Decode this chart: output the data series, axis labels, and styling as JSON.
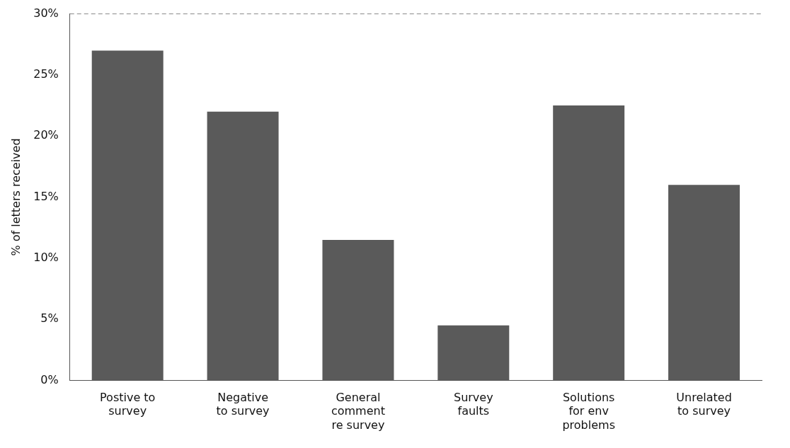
{
  "chart_data": {
    "type": "bar",
    "ylabel": "% of letters received",
    "categories": [
      "Postive to\nsurvey",
      "Negative\nto survey",
      "General\ncomment\nre survey",
      "Survey\nfaults",
      "Solutions\nfor env\nproblems",
      "Unrelated\nto survey"
    ],
    "values": [
      27,
      22,
      11.5,
      4.5,
      22.5,
      16
    ],
    "color": "#5a5a5a",
    "ylim": [
      0,
      30
    ],
    "yticks": [
      {
        "value": 0,
        "label": "0%"
      },
      {
        "value": 5,
        "label": "5%"
      },
      {
        "value": 10,
        "label": "10%"
      },
      {
        "value": 15,
        "label": "15%"
      },
      {
        "value": 20,
        "label": "20%"
      },
      {
        "value": 25,
        "label": "25%"
      },
      {
        "value": 30,
        "label": "30%"
      }
    ],
    "grid": false,
    "legend": false
  }
}
